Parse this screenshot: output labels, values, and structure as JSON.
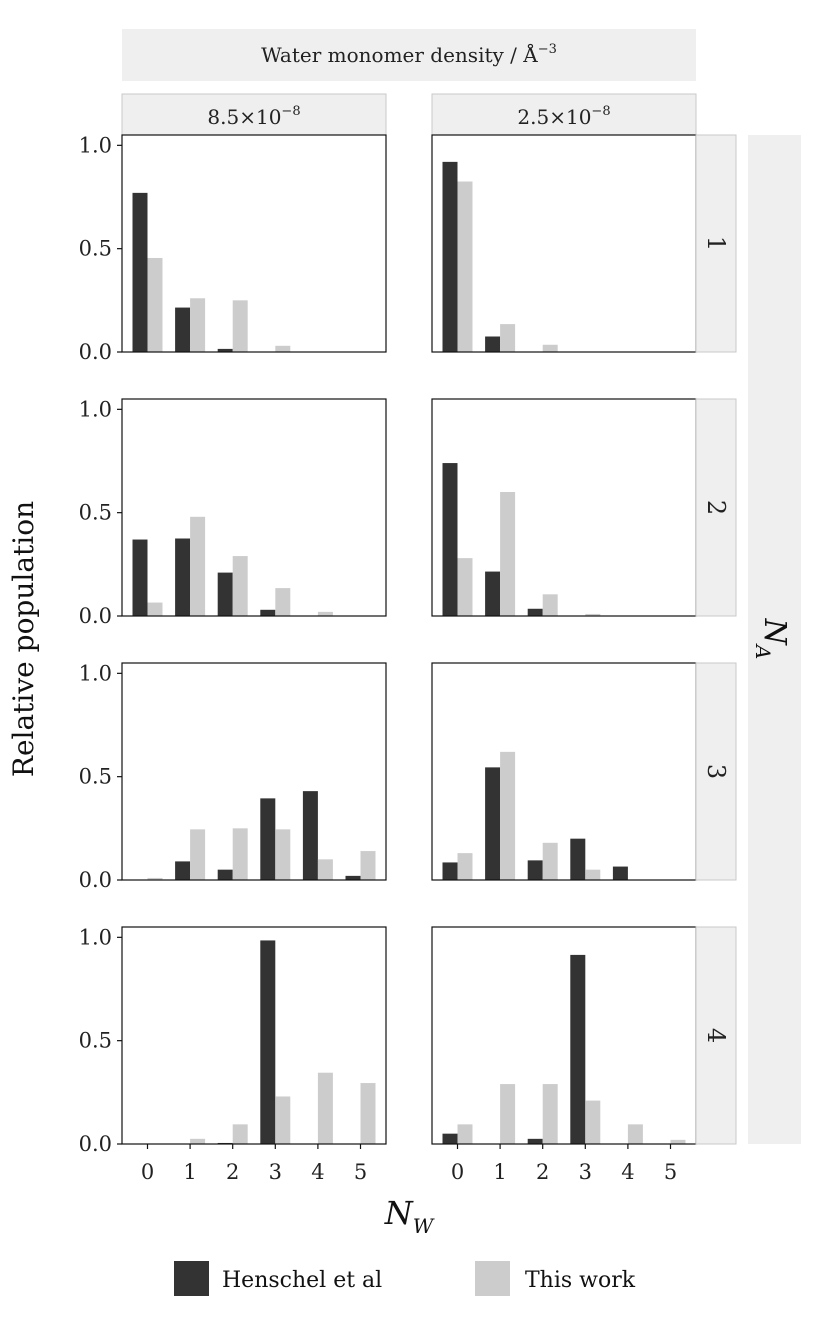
{
  "chart_data": {
    "type": "bar",
    "layout": "facet-grid",
    "col_strip_title": "Water monomer density / Å",
    "col_strip_title_exponent": "−3",
    "columns": [
      {
        "label_mantissa": "8.5×10",
        "label_exponent": "−8"
      },
      {
        "label_mantissa": "2.5×10",
        "label_exponent": "−8"
      }
    ],
    "row_strip_title_main": "N",
    "row_strip_title_sub": "A",
    "rows": [
      "1",
      "2",
      "3",
      "4"
    ],
    "xlabel_main": "N",
    "xlabel_sub": "W",
    "ylabel": "Relative population",
    "categories": [
      "0",
      "1",
      "2",
      "3",
      "4",
      "5"
    ],
    "yticks": [
      "0.0",
      "0.5",
      "1.0"
    ],
    "ylim": [
      0,
      1.05
    ],
    "colors": {
      "Henschel et al": "#333333",
      "This work": "#cccccc",
      "strip": "#efefef"
    },
    "legend": {
      "placement": "bottom",
      "entries": [
        "Henschel et al",
        "This work"
      ]
    },
    "series": [
      {
        "name": "Henschel et al",
        "panels": [
          [
            0.77,
            0.215,
            0.015,
            0,
            0,
            0
          ],
          [
            0.92,
            0.075,
            0,
            0,
            0,
            0
          ],
          [
            0.37,
            0.375,
            0.21,
            0.03,
            0,
            0
          ],
          [
            0.74,
            0.215,
            0.035,
            0,
            0,
            0
          ],
          [
            0,
            0.09,
            0.05,
            0.395,
            0.43,
            0.02
          ],
          [
            0.085,
            0.545,
            0.095,
            0.2,
            0.065,
            0
          ],
          [
            0,
            0,
            0.005,
            0.985,
            0,
            0
          ],
          [
            0.05,
            0,
            0.025,
            0.915,
            0,
            0
          ]
        ]
      },
      {
        "name": "This work",
        "panels": [
          [
            0.455,
            0.26,
            0.25,
            0.03,
            0,
            0
          ],
          [
            0.825,
            0.135,
            0.035,
            0,
            0,
            0
          ],
          [
            0.065,
            0.48,
            0.29,
            0.135,
            0.02,
            0
          ],
          [
            0.28,
            0.6,
            0.105,
            0.01,
            0,
            0
          ],
          [
            0.01,
            0.245,
            0.25,
            0.245,
            0.1,
            0.14
          ],
          [
            0.13,
            0.62,
            0.18,
            0.05,
            0,
            0
          ],
          [
            0,
            0.025,
            0.095,
            0.23,
            0.345,
            0.295
          ],
          [
            0.095,
            0.29,
            0.29,
            0.21,
            0.095,
            0.02
          ]
        ]
      }
    ]
  }
}
